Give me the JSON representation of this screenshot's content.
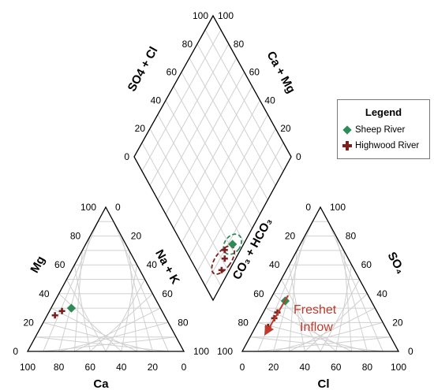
{
  "chart_data": {
    "type": "scatter",
    "subtype": "piper-diagram",
    "tick_labels": [
      "0",
      "20",
      "40",
      "60",
      "80",
      "100"
    ],
    "cation_triangle": {
      "axes": {
        "left": "Mg",
        "bottom": "Ca",
        "right": "Na + K"
      },
      "series": [
        {
          "name": "Sheep River",
          "points": [
            {
              "Ca": 83,
              "Mg": 30,
              "NaK": 13
            }
          ]
        },
        {
          "name": "Highwood River",
          "points": [
            {
              "Ca": 81,
              "Mg": 28,
              "NaK": 8
            },
            {
              "Ca": 80,
              "Mg": 25,
              "NaK": 5
            }
          ]
        }
      ]
    },
    "anion_triangle": {
      "axes": {
        "left": "CO₃ + HCO₃",
        "bottom": "Cl",
        "right": "SO₄"
      },
      "series": [
        {
          "name": "Sheep River",
          "points": [
            {
              "Cl": 10,
              "SO4": 35,
              "CO3HCO3": 61
            }
          ]
        },
        {
          "name": "Highwood River",
          "points": [
            {
              "Cl": 9,
              "SO4": 27,
              "CO3HCO3": 66
            },
            {
              "Cl": 9,
              "SO4": 23,
              "CO3HCO3": 70
            },
            {
              "Cl": 8,
              "SO4": 17,
              "CO3HCO3": 77
            }
          ]
        }
      ]
    },
    "diamond": {
      "axes": {
        "left": "SO4 + Cl",
        "right": "Ca + Mg"
      },
      "series": [
        {
          "name": "Sheep River",
          "points": [
            {
              "SO4Cl": 32,
              "CaMg": 93
            }
          ]
        },
        {
          "name": "Highwood River",
          "points": [
            {
              "SO4Cl": 25,
              "CaMg": 90
            },
            {
              "SO4Cl": 22,
              "CaMg": 93
            },
            {
              "SO4Cl": 16,
              "CaMg": 95
            }
          ]
        }
      ],
      "groupings": [
        "Sheep River",
        "Highwood River"
      ]
    },
    "annotation": {
      "lines": [
        "Freshet",
        "Inflow"
      ],
      "color": "#c0392b"
    },
    "legend": {
      "title": "Legend",
      "placement": "right",
      "entries": [
        {
          "label": "Sheep River",
          "color": "#2e8b57",
          "marker": "diamond"
        },
        {
          "label": "Highwood River",
          "color": "#7b1f1f",
          "marker": "plus"
        }
      ]
    },
    "grid": true
  }
}
